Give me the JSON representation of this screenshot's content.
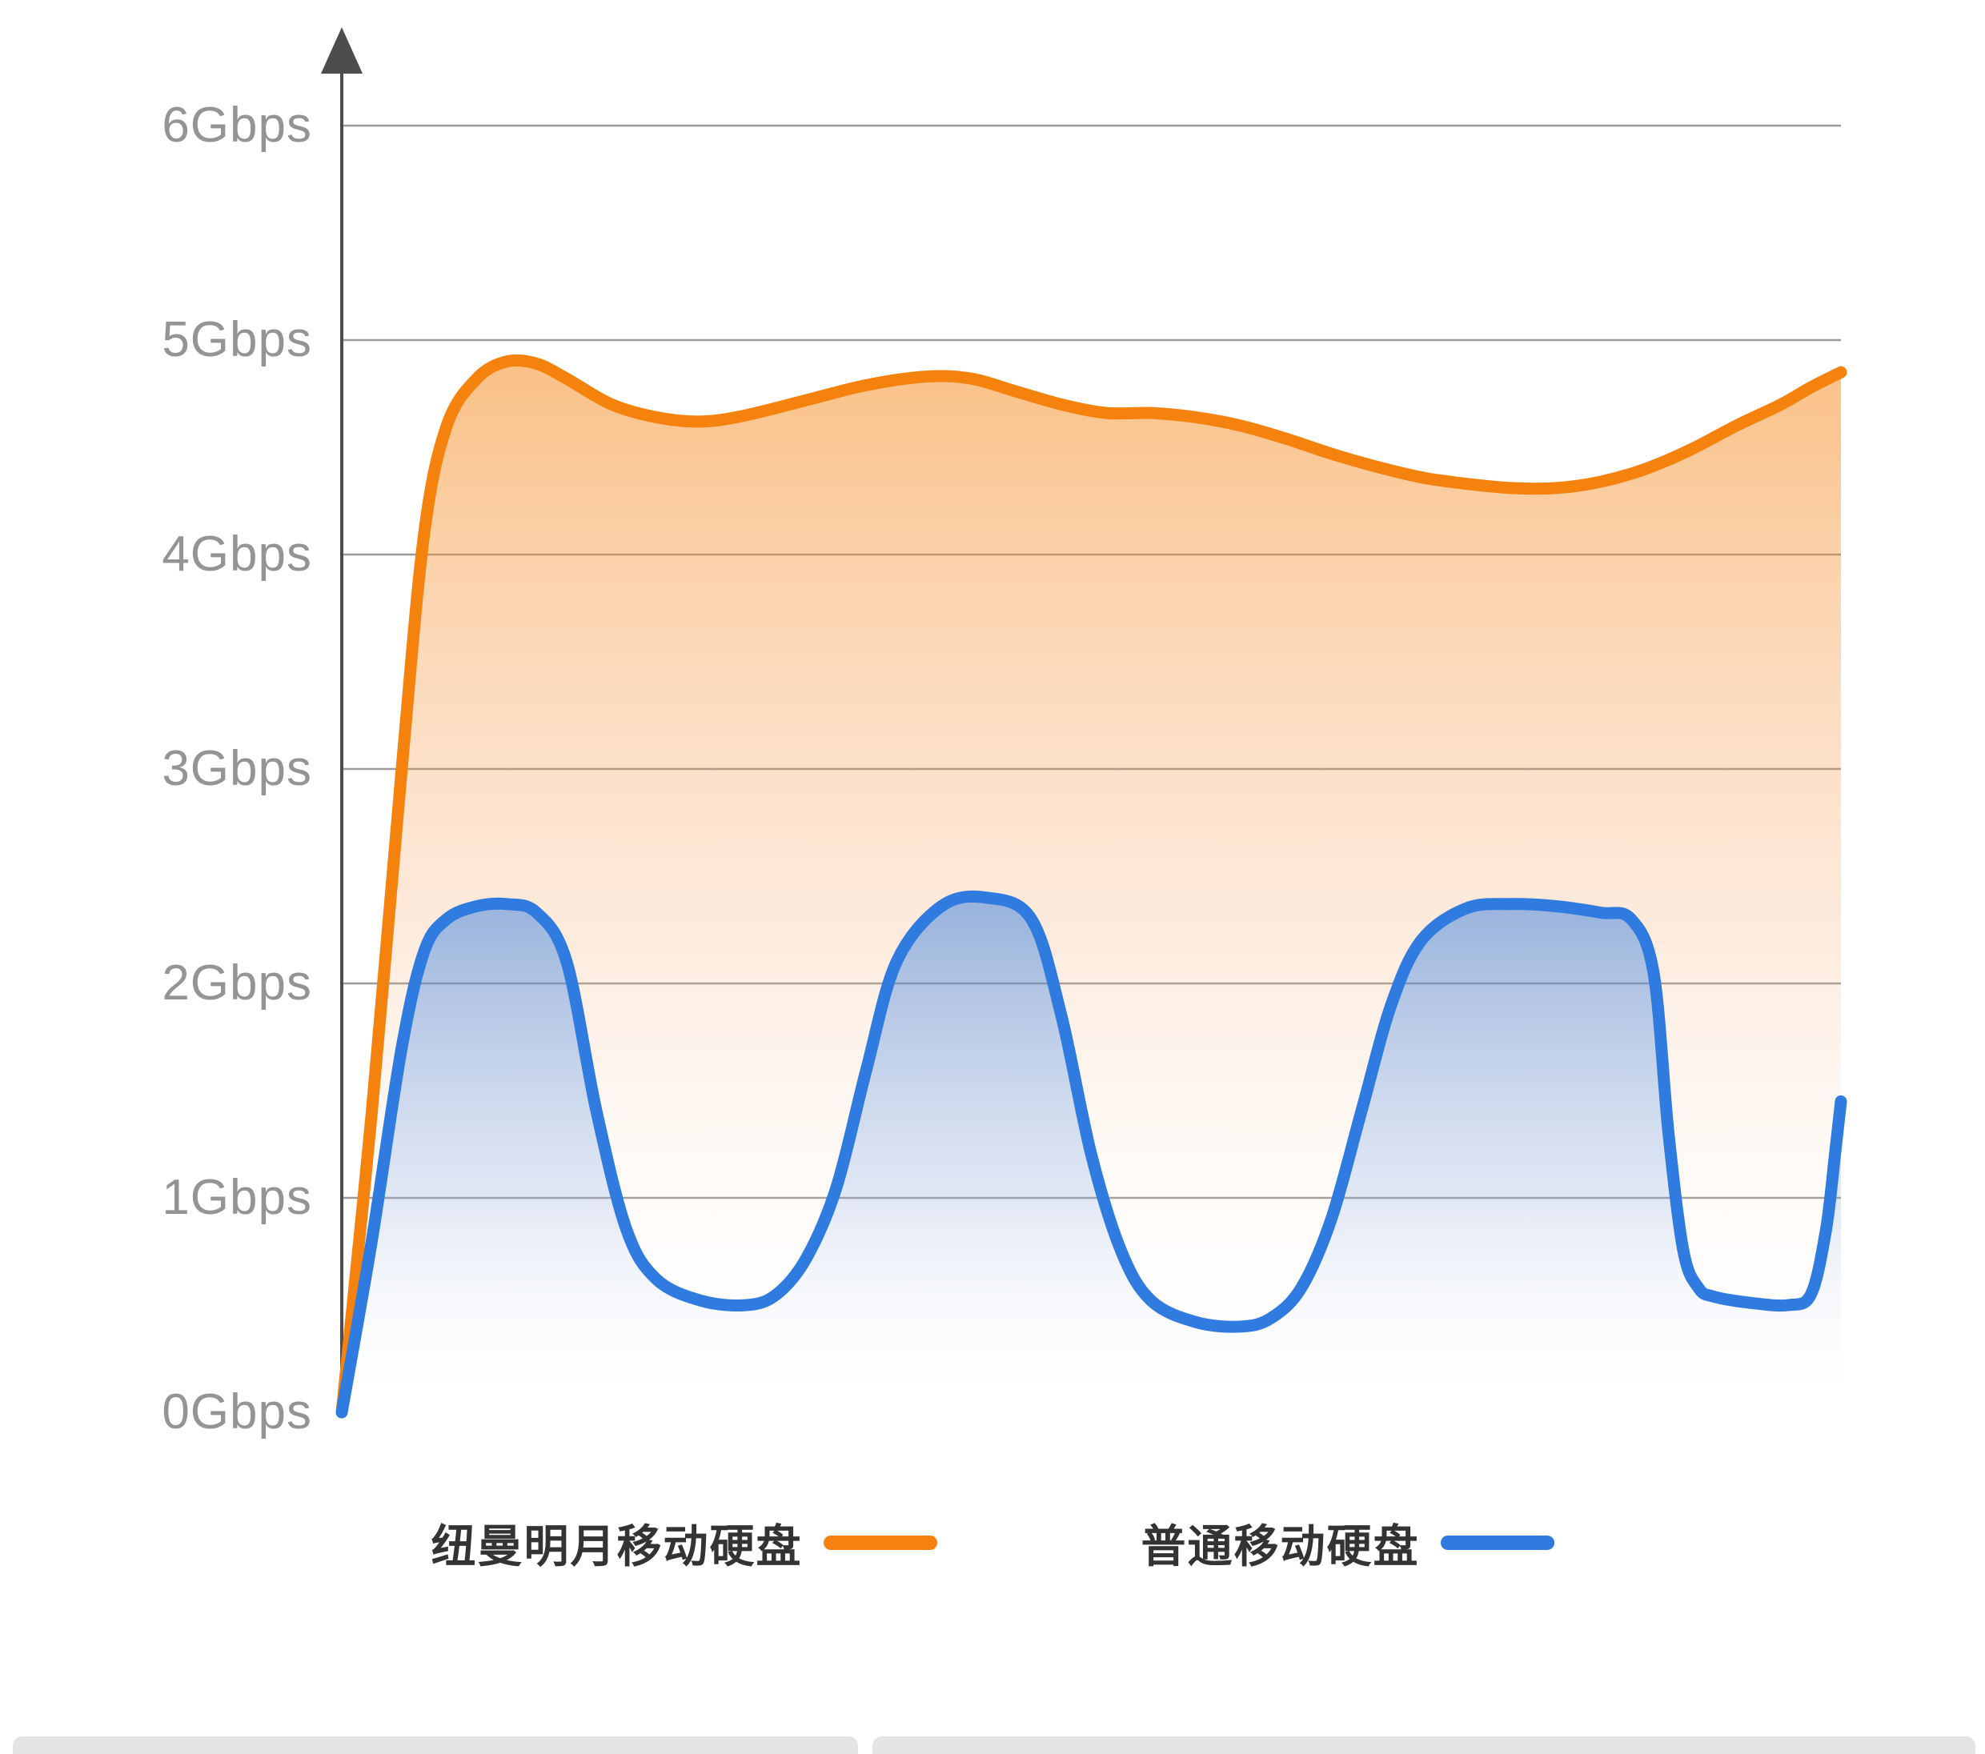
{
  "chart_data": {
    "type": "area",
    "title": "",
    "xlabel": "",
    "ylabel": "",
    "y_unit": "Gbps",
    "ylim": [
      0,
      6.3
    ],
    "grid": true,
    "legend_position": "bottom",
    "y_ticks": [
      "0Gbps",
      "1Gbps",
      "2Gbps",
      "3Gbps",
      "4Gbps",
      "5Gbps",
      "6Gbps"
    ],
    "series": [
      {
        "name": "纽曼明月移动硬盘",
        "color": "#F5820C",
        "points": [
          [
            0,
            0
          ],
          [
            2,
            1.4
          ],
          [
            4,
            3.0
          ],
          [
            5.5,
            4.1
          ],
          [
            7,
            4.6
          ],
          [
            9,
            4.82
          ],
          [
            11,
            4.9
          ],
          [
            13,
            4.89
          ],
          [
            15,
            4.82
          ],
          [
            18,
            4.7
          ],
          [
            21,
            4.64
          ],
          [
            24,
            4.62
          ],
          [
            27,
            4.65
          ],
          [
            31,
            4.72
          ],
          [
            35,
            4.79
          ],
          [
            39,
            4.83
          ],
          [
            42,
            4.82
          ],
          [
            45,
            4.76
          ],
          [
            48,
            4.7
          ],
          [
            51,
            4.66
          ],
          [
            54,
            4.66
          ],
          [
            57,
            4.64
          ],
          [
            60,
            4.6
          ],
          [
            63,
            4.54
          ],
          [
            66,
            4.47
          ],
          [
            69,
            4.41
          ],
          [
            72,
            4.36
          ],
          [
            75,
            4.33
          ],
          [
            78,
            4.31
          ],
          [
            81,
            4.31
          ],
          [
            84,
            4.34
          ],
          [
            87,
            4.4
          ],
          [
            90,
            4.49
          ],
          [
            93,
            4.6
          ],
          [
            96,
            4.7
          ],
          [
            98,
            4.78
          ],
          [
            100,
            4.85
          ]
        ]
      },
      {
        "name": "普通移动硬盘",
        "color": "#2F7BE0",
        "points": [
          [
            0,
            0
          ],
          [
            2,
            0.8
          ],
          [
            4,
            1.7
          ],
          [
            5.5,
            2.15
          ],
          [
            7,
            2.3
          ],
          [
            9,
            2.36
          ],
          [
            11,
            2.37
          ],
          [
            13,
            2.33
          ],
          [
            15,
            2.1
          ],
          [
            17,
            1.4
          ],
          [
            19,
            0.85
          ],
          [
            21,
            0.62
          ],
          [
            24,
            0.52
          ],
          [
            27,
            0.5
          ],
          [
            29,
            0.55
          ],
          [
            31,
            0.72
          ],
          [
            33,
            1.05
          ],
          [
            35,
            1.6
          ],
          [
            37,
            2.1
          ],
          [
            40,
            2.36
          ],
          [
            43,
            2.4
          ],
          [
            46,
            2.3
          ],
          [
            48,
            1.85
          ],
          [
            50,
            1.2
          ],
          [
            52,
            0.75
          ],
          [
            54,
            0.52
          ],
          [
            57,
            0.42
          ],
          [
            60,
            0.4
          ],
          [
            62,
            0.44
          ],
          [
            64,
            0.58
          ],
          [
            66,
            0.9
          ],
          [
            68,
            1.4
          ],
          [
            70,
            1.9
          ],
          [
            72,
            2.2
          ],
          [
            75,
            2.35
          ],
          [
            78,
            2.37
          ],
          [
            81,
            2.36
          ],
          [
            84,
            2.33
          ],
          [
            86,
            2.3
          ],
          [
            87.5,
            2.05
          ],
          [
            88.5,
            1.3
          ],
          [
            89.5,
            0.75
          ],
          [
            90.5,
            0.58
          ],
          [
            91.5,
            0.54
          ],
          [
            94,
            0.51
          ],
          [
            96.5,
            0.5
          ],
          [
            98,
            0.55
          ],
          [
            99,
            0.85
          ],
          [
            99.6,
            1.2
          ],
          [
            100,
            1.45
          ]
        ]
      }
    ],
    "legend": [
      {
        "label": "纽曼明月移动硬盘",
        "color": "#F5820C"
      },
      {
        "label": "普通移动硬盘",
        "color": "#2F7BE0"
      }
    ],
    "axis": {
      "line_color": "#4D4D4D",
      "grid_color": "#9B9B9B"
    }
  }
}
